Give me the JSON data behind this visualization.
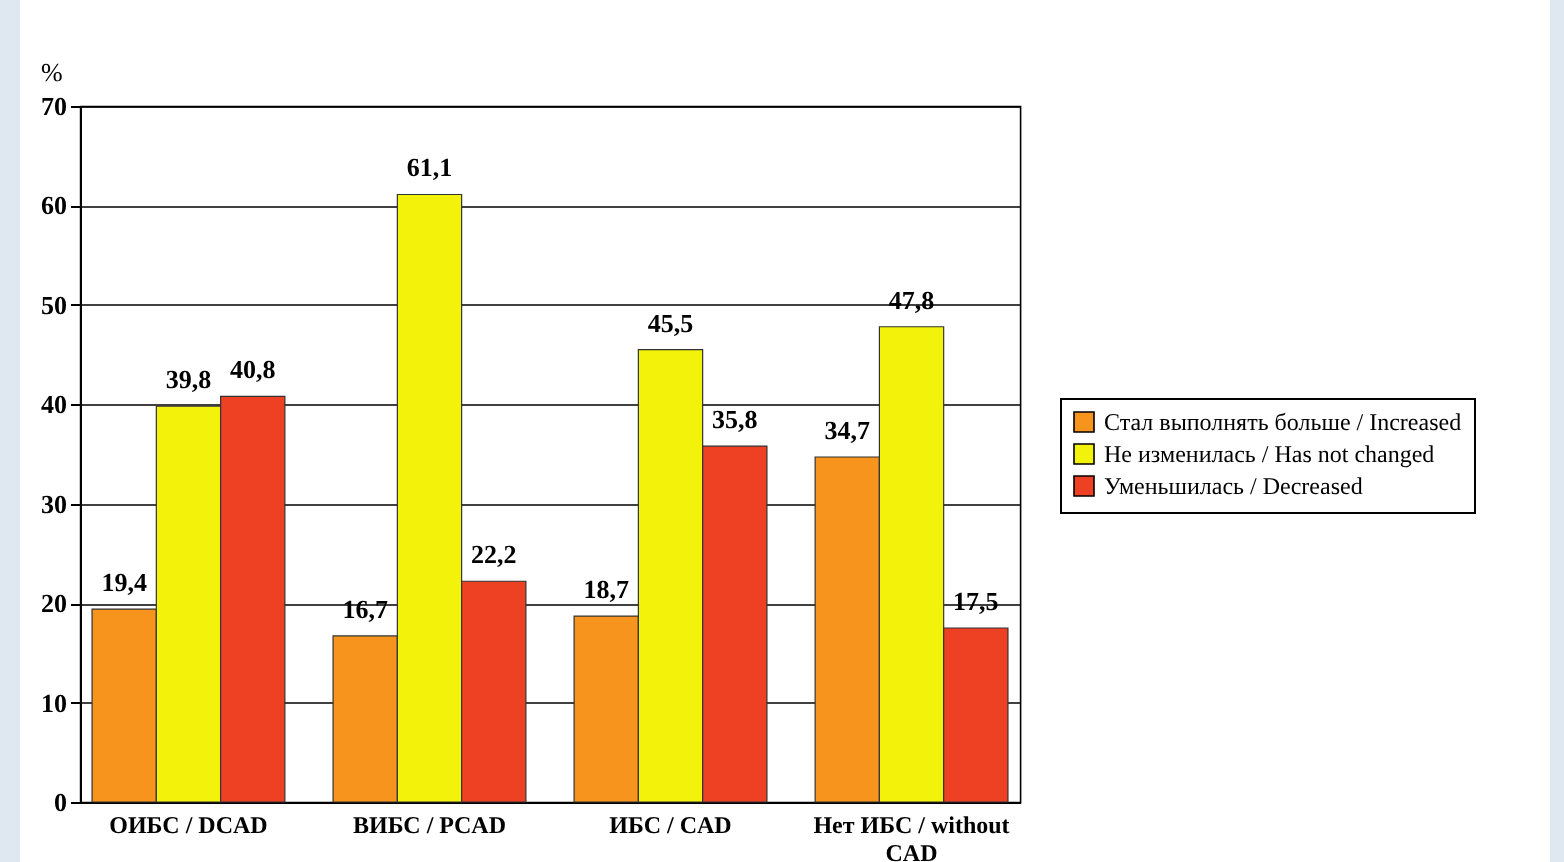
{
  "chart_data": {
    "type": "bar",
    "ylabel": "%",
    "categories": [
      "ОИБС / DCAD",
      "ВИБС / PCAD",
      "ИБС / CAD",
      "Нет ИБС / without CAD"
    ],
    "series": [
      {
        "name": "Стал выполнять больше / Increased",
        "color": "#f7941d",
        "values": [
          19.4,
          16.7,
          18.7,
          34.7
        ],
        "value_labels": [
          "19,4",
          "16,7",
          "18,7",
          "34,7"
        ]
      },
      {
        "name": "Не изменилась / Has not changed",
        "color": "#f2f20a",
        "values": [
          39.8,
          61.1,
          45.5,
          47.8
        ],
        "value_labels": [
          "39,8",
          "61,1",
          "45,5",
          "47,8"
        ]
      },
      {
        "name": "Уменьшилась / Decreased",
        "color": "#ee4023",
        "values": [
          40.8,
          22.2,
          35.8,
          17.5
        ],
        "value_labels": [
          "40,8",
          "22,2",
          "35,8",
          "17,5"
        ]
      }
    ],
    "ylim": [
      0,
      70
    ],
    "yticks": [
      0,
      10,
      20,
      30,
      40,
      50,
      60,
      70
    ],
    "grid": "y",
    "legend": "right"
  }
}
